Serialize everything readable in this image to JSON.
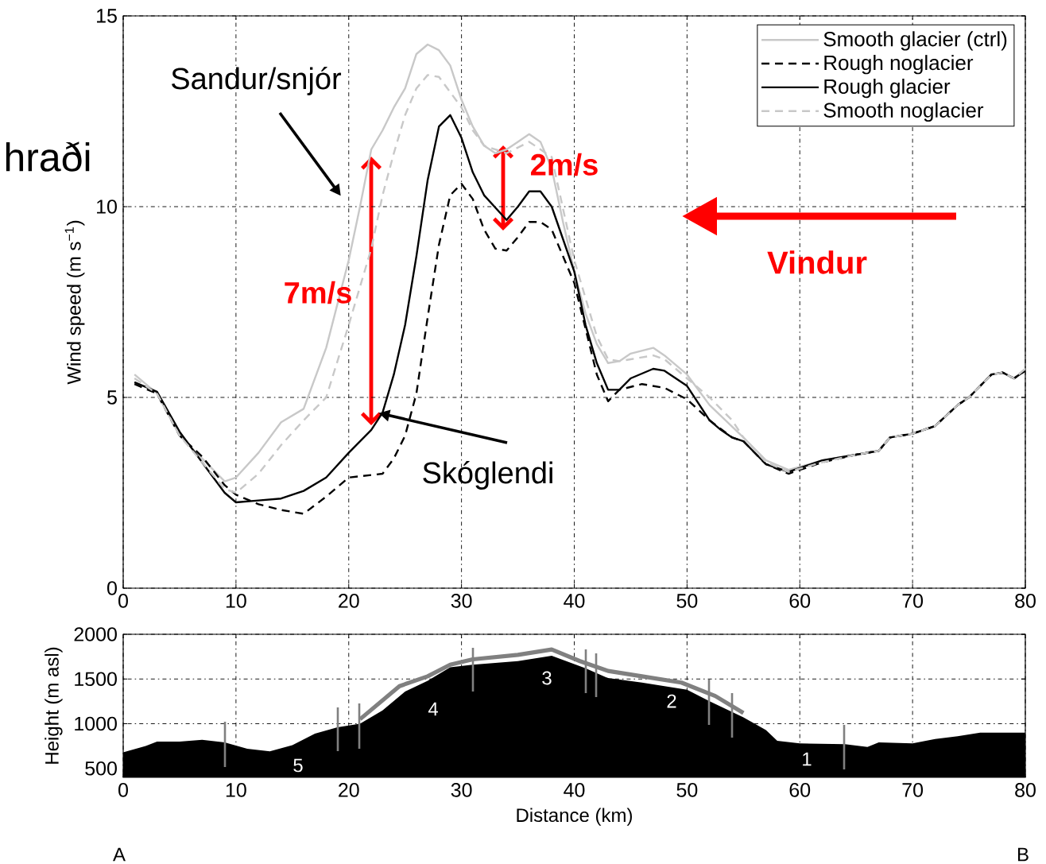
{
  "chart_data": [
    {
      "type": "line",
      "ylabel": "Wind speed (m s$^{−1}$)",
      "xlim": [
        0,
        80
      ],
      "xticks": [
        0,
        10,
        20,
        30,
        40,
        50,
        60,
        70,
        80
      ],
      "ylim": [
        0,
        15
      ],
      "yticks": [
        0,
        5,
        10,
        15
      ],
      "grid": true,
      "legend": "top right",
      "annotations": [
        "hraði",
        "Sandur/snjór",
        "7m/s",
        "2m/s",
        {
          "text": "Skóglendi",
          "x": 22.5,
          "y": 4.6
        },
        "Vindur"
      ],
      "series": [
        {
          "name": "Smooth glacier (ctrl)",
          "color": "#c8c8c8",
          "line_style": "solid",
          "x": [
            1,
            3,
            5,
            7,
            9,
            10,
            12,
            14,
            16,
            18,
            20,
            21,
            22,
            23,
            24,
            25,
            26,
            27,
            28,
            29,
            30,
            31,
            32,
            33,
            34,
            35,
            36,
            37,
            38,
            39,
            40,
            41,
            42,
            43,
            44,
            45,
            47,
            48,
            50,
            52,
            55,
            57,
            59,
            62,
            65,
            67,
            68,
            70,
            72,
            74,
            75,
            77,
            78,
            79,
            80
          ],
          "values": [
            5.6,
            5.1,
            4.0,
            3.4,
            2.8,
            2.9,
            3.55,
            4.35,
            4.7,
            6.3,
            8.6,
            10.0,
            11.5,
            12.0,
            12.6,
            13.1,
            14.0,
            14.25,
            14.1,
            13.7,
            12.8,
            12.1,
            11.6,
            11.4,
            11.5,
            11.7,
            11.9,
            11.7,
            11.0,
            9.6,
            8.3,
            7.2,
            6.4,
            5.9,
            5.95,
            6.15,
            6.3,
            6.1,
            5.6,
            4.8,
            3.95,
            3.35,
            3.1,
            3.35,
            3.5,
            3.6,
            3.95,
            4.05,
            4.25,
            4.8,
            5.0,
            5.6,
            5.65,
            5.5,
            5.75
          ]
        },
        {
          "name": "Rough noglacier",
          "color": "#000000",
          "line_style": "dashed",
          "x": [
            1,
            3,
            5,
            7,
            9,
            10,
            12,
            14,
            16,
            18,
            20,
            23,
            24,
            25,
            26,
            27,
            28,
            29,
            30,
            31,
            32,
            33,
            34,
            35,
            36,
            37,
            38,
            40,
            41,
            42,
            43,
            44,
            46,
            48,
            50,
            52,
            54,
            55,
            57,
            59,
            62,
            65,
            67,
            68,
            70,
            72,
            74,
            75,
            77,
            78,
            79,
            80
          ],
          "values": [
            5.35,
            5.1,
            4.0,
            3.45,
            2.7,
            2.45,
            2.2,
            2.05,
            1.95,
            2.4,
            2.9,
            3.0,
            3.4,
            4.0,
            5.1,
            7.1,
            9.0,
            10.3,
            10.6,
            10.2,
            9.4,
            8.9,
            8.85,
            9.2,
            9.6,
            9.6,
            9.4,
            8.0,
            6.8,
            5.6,
            4.9,
            5.2,
            5.35,
            5.25,
            4.95,
            4.4,
            3.95,
            3.85,
            3.25,
            3.0,
            3.3,
            3.5,
            3.6,
            3.95,
            4.05,
            4.25,
            4.8,
            5.0,
            5.6,
            5.65,
            5.5,
            5.7
          ]
        },
        {
          "name": "Rough glacier",
          "color": "#000000",
          "line_style": "solid",
          "x": [
            1,
            3,
            5,
            7,
            9,
            10,
            12,
            14,
            16,
            18,
            20,
            22,
            23,
            24,
            25,
            26,
            27,
            28,
            29,
            30,
            31,
            32,
            34,
            35,
            36,
            37,
            38,
            40,
            41,
            42,
            43,
            44,
            45,
            47,
            48,
            50,
            52,
            53,
            54,
            55,
            57,
            59,
            62,
            65,
            67,
            68,
            70,
            72,
            74,
            75,
            77,
            78,
            79,
            80
          ],
          "values": [
            5.4,
            5.15,
            4.1,
            3.3,
            2.5,
            2.25,
            2.3,
            2.35,
            2.55,
            2.9,
            3.55,
            4.15,
            4.6,
            5.6,
            6.9,
            8.7,
            10.7,
            12.1,
            12.4,
            11.8,
            10.9,
            10.3,
            9.65,
            10.0,
            10.4,
            10.4,
            10.0,
            8.3,
            6.9,
            5.9,
            5.2,
            5.2,
            5.5,
            5.75,
            5.7,
            5.3,
            4.4,
            4.15,
            3.95,
            3.85,
            3.25,
            3.05,
            3.35,
            3.5,
            3.6,
            3.95,
            4.05,
            4.25,
            4.8,
            5.0,
            5.6,
            5.65,
            5.5,
            5.7
          ]
        },
        {
          "name": "Smooth noglacier",
          "color": "#c8c8c8",
          "line_style": "dashed",
          "x": [
            1,
            3,
            5,
            7,
            9,
            10,
            12,
            14,
            16,
            18,
            20,
            21,
            22,
            23,
            24,
            25,
            26,
            27,
            28,
            29,
            30,
            31,
            32,
            34,
            36,
            38,
            40,
            42,
            43,
            44,
            45,
            47,
            48,
            50,
            52,
            54,
            55,
            57,
            59,
            62,
            65,
            67,
            68,
            70,
            72,
            74,
            75,
            77,
            78,
            79,
            80
          ],
          "values": [
            5.5,
            5.1,
            4.0,
            3.3,
            2.6,
            2.5,
            3.0,
            3.75,
            4.4,
            5.0,
            6.9,
            7.9,
            8.9,
            10.3,
            11.4,
            12.4,
            13.1,
            13.45,
            13.4,
            13.0,
            12.6,
            12.0,
            11.6,
            11.4,
            11.7,
            11.3,
            8.6,
            6.6,
            6.0,
            5.95,
            6.0,
            6.1,
            6.0,
            5.5,
            5.0,
            4.4,
            3.95,
            3.3,
            3.05,
            3.3,
            3.5,
            3.6,
            3.95,
            4.05,
            4.25,
            4.8,
            5.0,
            5.6,
            5.65,
            5.5,
            5.75
          ]
        }
      ]
    },
    {
      "type": "area",
      "xlabel": "Distance (km)",
      "ylabel": "Height (m asl)",
      "xlim": [
        0,
        80
      ],
      "xticks": [
        0,
        10,
        20,
        30,
        40,
        50,
        60,
        70,
        80
      ],
      "ylim": [
        400,
        2000
      ],
      "yticks": [
        500,
        1000,
        1500,
        2000
      ],
      "grid": true,
      "annotations": [
        "5",
        "4",
        "3",
        "2",
        "1",
        "A",
        "B"
      ],
      "series": [
        {
          "color": "#000000",
          "x": [
            0,
            2,
            3,
            5,
            7,
            9,
            11,
            13,
            15,
            17,
            19,
            21,
            23,
            25,
            27,
            29,
            31,
            35,
            38,
            41,
            43,
            46,
            50,
            52,
            55,
            57,
            58,
            60,
            64,
            66,
            67,
            70,
            72,
            74,
            76,
            78,
            80
          ],
          "values": [
            680,
            750,
            800,
            800,
            820,
            790,
            720,
            690,
            760,
            890,
            960,
            1000,
            1150,
            1360,
            1480,
            1630,
            1660,
            1700,
            1760,
            1620,
            1510,
            1460,
            1380,
            1250,
            1070,
            930,
            810,
            780,
            770,
            740,
            790,
            780,
            830,
            860,
            900,
            900,
            900
          ]
        },
        {
          "type": "line",
          "color": "#808080",
          "x": [
            21,
            24.5,
            27,
            29,
            31,
            35,
            38,
            40.5,
            43,
            46,
            49.5,
            52.5,
            55
          ],
          "values": [
            1050,
            1420,
            1530,
            1660,
            1720,
            1770,
            1830,
            1700,
            1590,
            1530,
            1460,
            1310,
            1120
          ]
        }
      ]
    }
  ]
}
